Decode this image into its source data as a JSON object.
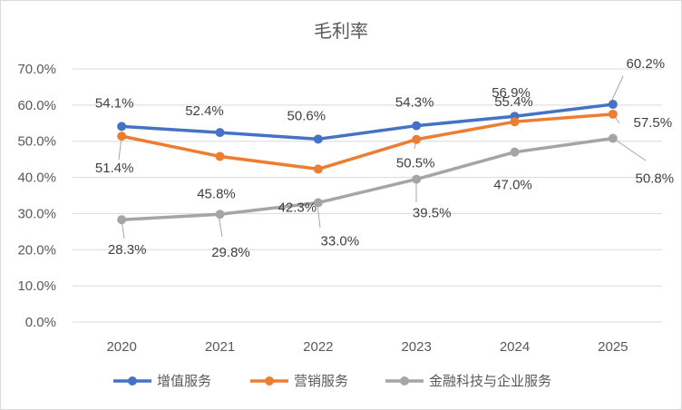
{
  "chart_data": {
    "type": "line",
    "title": "毛利率",
    "xlabel": "",
    "ylabel": "",
    "categories": [
      "2020",
      "2021",
      "2022",
      "2023",
      "2024",
      "2025"
    ],
    "ylim": [
      0,
      70
    ],
    "yticks": [
      "0.0%",
      "10.0%",
      "20.0%",
      "30.0%",
      "40.0%",
      "50.0%",
      "60.0%",
      "70.0%"
    ],
    "grid": true,
    "legend_position": "bottom",
    "series": [
      {
        "name": "增值服务",
        "color": "#4472c4",
        "values": [
          54.1,
          52.4,
          50.6,
          54.3,
          56.9,
          60.2
        ],
        "labels": [
          "54.1%",
          "52.4%",
          "50.6%",
          "54.3%",
          "56.9%",
          "60.2%"
        ]
      },
      {
        "name": "营销服务",
        "color": "#ed7d31",
        "values": [
          51.4,
          45.8,
          42.3,
          50.5,
          55.4,
          57.5
        ],
        "labels": [
          "51.4%",
          "45.8%",
          "42.3%",
          "50.5%",
          "55.4%",
          "57.5%"
        ]
      },
      {
        "name": "金融科技与企业服务",
        "color": "#a5a5a5",
        "values": [
          28.3,
          29.8,
          33.0,
          39.5,
          47.0,
          50.8
        ],
        "labels": [
          "28.3%",
          "29.8%",
          "33.0%",
          "39.5%",
          "47.0%",
          "50.8%"
        ]
      }
    ]
  }
}
